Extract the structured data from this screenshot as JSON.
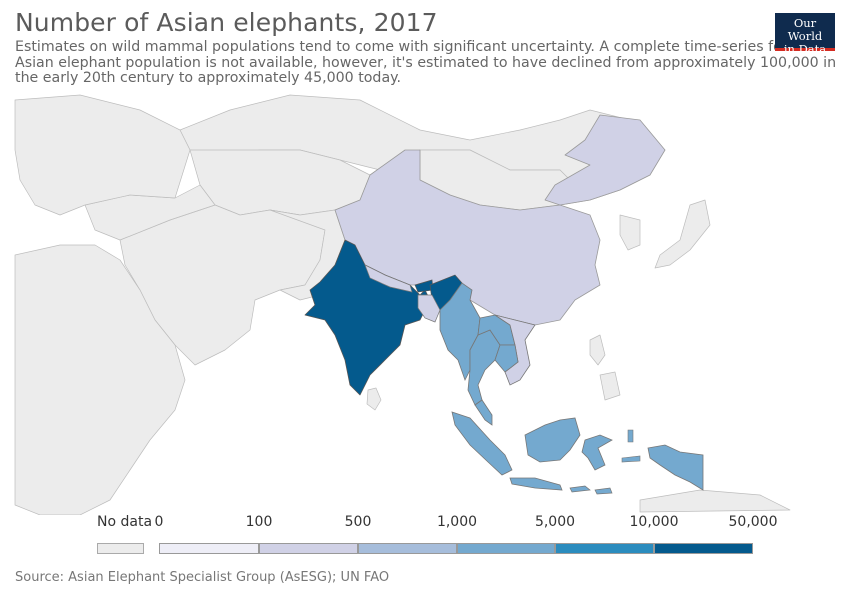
{
  "header": {
    "title": "Number of Asian elephants, 2017",
    "subtitle": "Estimates on wild mammal populations tend to come with significant uncertainty. A complete time-series for the Asian elephant population is not available, however, it's estimated to have declined from approximately 100,000 in the early 20th century to approximately 45,000 today."
  },
  "logo": {
    "line1": "Our World",
    "line2": "in Data",
    "bg": "#0f2b4e",
    "accent": "#d42b21"
  },
  "legend": {
    "no_data_label": "No data",
    "no_data_color": "#ececec",
    "ticks": [
      "0",
      "100",
      "500",
      "1,000",
      "5,000",
      "10,000",
      "50,000"
    ],
    "colors": [
      "#eeeef7",
      "#d0d1e6",
      "#a6bddb",
      "#74a9cf",
      "#2b8cbe",
      "#045a8d"
    ]
  },
  "countries": {
    "India": "#045a8d",
    "China": "#d0d1e6",
    "Bhutan": "#045a8d",
    "Nepal": "#d0d1e6",
    "Bangladesh": "#d0d1e6",
    "Myanmar": "#74a9cf",
    "Thailand": "#74a9cf",
    "Laos": "#74a9cf",
    "Cambodia": "#74a9cf",
    "Vietnam": "#d0d1e6",
    "Malaysia": "#74a9cf",
    "Indonesia": "#74a9cf",
    "Sri Lanka": "#ececec"
  },
  "footer": {
    "source": "Source: Asian Elephant Specialist Group (AsESG); UN FAO"
  }
}
